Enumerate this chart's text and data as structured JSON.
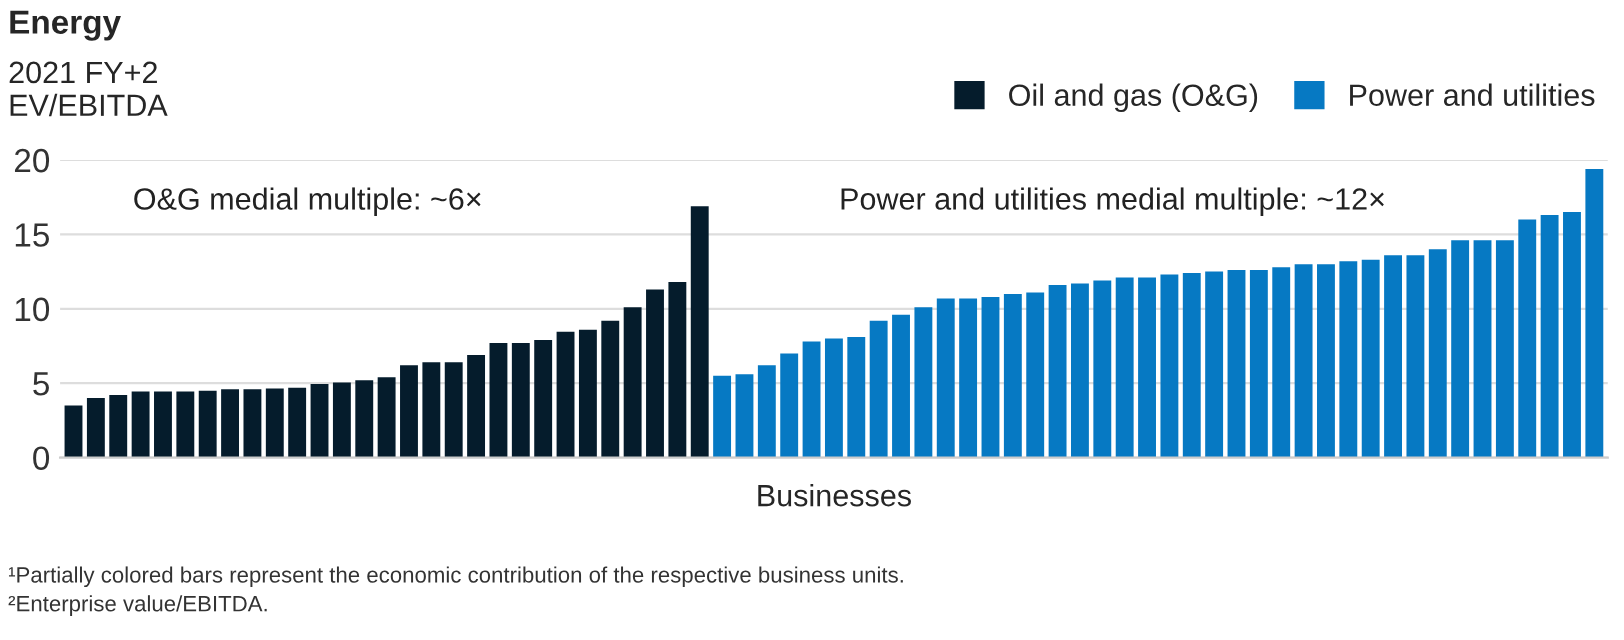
{
  "chart_data": {
    "type": "bar",
    "title": "Energy",
    "ylabel": "2021 FY+2\nEV/EBITDA",
    "xlabel": "Businesses",
    "categories": [
      null,
      null,
      null,
      null,
      null,
      null,
      null,
      null,
      null,
      null,
      null,
      null,
      null,
      null,
      null,
      null,
      null,
      null,
      null,
      null,
      null,
      null,
      null,
      null,
      null,
      null,
      null,
      null,
      null,
      null,
      null,
      null,
      null,
      null,
      null,
      null,
      null,
      null,
      null,
      null,
      null,
      null,
      null,
      null,
      null,
      null,
      null,
      null,
      null,
      null,
      null,
      null,
      null,
      null,
      null,
      null,
      null,
      null,
      null,
      null,
      null,
      null,
      null,
      null,
      null,
      null,
      null,
      null,
      null
    ],
    "series": [
      {
        "name": "Oil and gas (O&G)",
        "color": "#051c2c",
        "values": [
          3.5,
          4.0,
          4.2,
          4.45,
          4.45,
          4.45,
          4.5,
          4.6,
          4.6,
          4.65,
          4.7,
          4.95,
          5.05,
          5.2,
          5.4,
          6.2,
          6.4,
          6.4,
          6.9,
          7.7,
          7.7,
          7.9,
          8.45,
          8.6,
          9.2,
          10.1,
          11.3,
          11.8,
          16.9,
          null,
          null,
          null,
          null,
          null,
          null,
          null,
          null,
          null,
          null,
          null,
          null,
          null,
          null,
          null,
          null,
          null,
          null,
          null,
          null,
          null,
          null,
          null,
          null,
          null,
          null,
          null,
          null,
          null,
          null,
          null,
          null,
          null,
          null,
          null,
          null,
          null,
          null,
          null,
          null
        ]
      },
      {
        "name": "Power and utilities",
        "color": "#0679c3",
        "values": [
          null,
          null,
          null,
          null,
          null,
          null,
          null,
          null,
          null,
          null,
          null,
          null,
          null,
          null,
          null,
          null,
          null,
          null,
          null,
          null,
          null,
          null,
          null,
          null,
          null,
          null,
          null,
          null,
          null,
          5.5,
          5.6,
          6.2,
          7.0,
          7.8,
          8.0,
          8.1,
          9.2,
          9.6,
          10.1,
          10.7,
          10.7,
          10.8,
          11.0,
          11.1,
          11.6,
          11.7,
          11.9,
          12.1,
          12.1,
          12.3,
          12.4,
          12.5,
          12.6,
          12.6,
          12.8,
          13.0,
          13.0,
          13.2,
          13.3,
          13.6,
          13.6,
          14.0,
          14.6,
          14.6,
          14.6,
          16.0,
          16.3,
          16.5,
          19.4
        ]
      }
    ],
    "ylim": [
      0,
      20
    ],
    "yticks": [
      0,
      5,
      10,
      15,
      20
    ],
    "grid": "y",
    "legend": "top right",
    "annotations": [
      "O&G medial multiple: ~6×",
      "Power and utilities medial multiple: ~12×",
      "¹Partially colored bars represent the economic contribution of the respective business units.",
      "²Enterprise value/EBITDA."
    ]
  }
}
